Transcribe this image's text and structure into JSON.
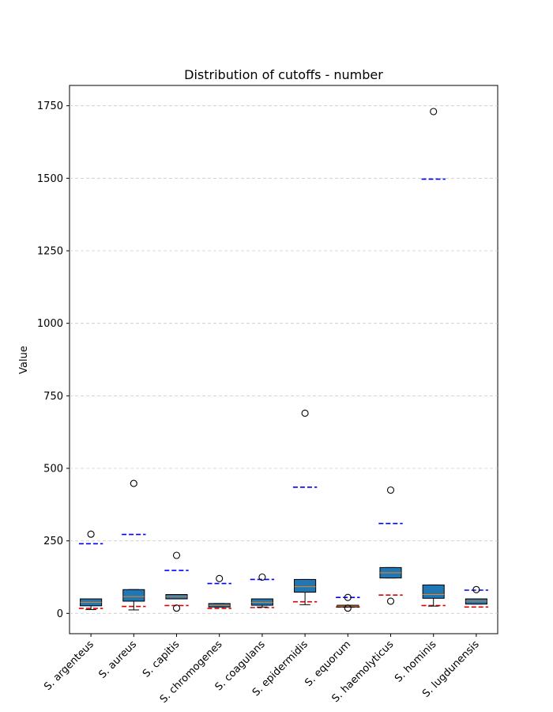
{
  "chart_data": {
    "type": "box",
    "title": "Distribution of cutoffs - number",
    "xlabel": "",
    "ylabel": "Value",
    "ylim": [
      -70,
      1820
    ],
    "yticks": [
      0,
      250,
      500,
      750,
      1000,
      1250,
      1500,
      1750
    ],
    "grid": "y-dashed",
    "categories": [
      "S. argenteus",
      "S. aureus",
      "S. capitis",
      "S. chromogenes",
      "S. coagulans",
      "S. epidermidis",
      "S. equorum",
      "S. haemolyticus",
      "S. hominis",
      "S. lugdunensis"
    ],
    "boxes": [
      {
        "whisker_low": 13,
        "q1": 26,
        "median": 38,
        "q3": 50,
        "whisker_high": 50,
        "outliers": [
          273
        ]
      },
      {
        "whisker_low": 12,
        "q1": 42,
        "median": 58,
        "q3": 82,
        "whisker_high": 82,
        "outliers": [
          448
        ]
      },
      {
        "whisker_low": 50,
        "q1": 50,
        "median": 58,
        "q3": 65,
        "whisker_high": 65,
        "outliers": [
          200,
          18
        ]
      },
      {
        "whisker_low": 22,
        "q1": 22,
        "median": 28,
        "q3": 34,
        "whisker_high": 34,
        "outliers": [
          120
        ]
      },
      {
        "whisker_low": 22,
        "q1": 28,
        "median": 38,
        "q3": 50,
        "whisker_high": 50,
        "outliers": [
          125
        ]
      },
      {
        "whisker_low": 30,
        "q1": 73,
        "median": 92,
        "q3": 117,
        "whisker_high": 117,
        "outliers": [
          690
        ]
      },
      {
        "whisker_low": 22,
        "q1": 22,
        "median": 25,
        "q3": 28,
        "whisker_high": 28,
        "outliers": [
          55,
          18
        ]
      },
      {
        "whisker_low": 122,
        "q1": 122,
        "median": 140,
        "q3": 158,
        "whisker_high": 158,
        "outliers": [
          425,
          42
        ]
      },
      {
        "whisker_low": 25,
        "q1": 52,
        "median": 65,
        "q3": 98,
        "whisker_high": 98,
        "outliers": [
          1730
        ]
      },
      {
        "whisker_low": 32,
        "q1": 32,
        "median": 42,
        "q3": 50,
        "whisker_high": 50,
        "outliers": [
          82
        ]
      }
    ],
    "reference_lines": [
      {
        "color": "#0000ff",
        "values": [
          240,
          272,
          148,
          103,
          117,
          435,
          55,
          310,
          1497,
          80
        ]
      },
      {
        "color": "#dd0000",
        "values": [
          17,
          24,
          27,
          17,
          20,
          40,
          22,
          63,
          27,
          22
        ]
      }
    ],
    "colors": {
      "box_fill": "#1f77b4",
      "median": "#ff7f0e",
      "upper_line": "#0000ff",
      "lower_line": "#dd0000",
      "grid": "#cccccc"
    }
  }
}
